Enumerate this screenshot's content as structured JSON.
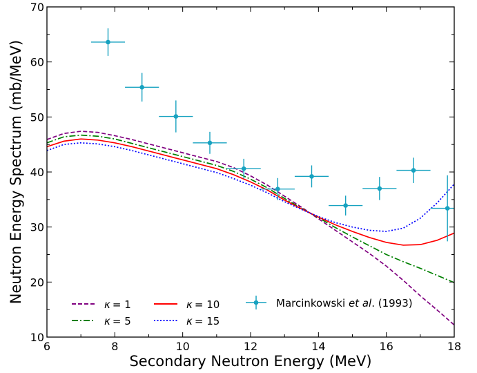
{
  "chart_data": {
    "type": "line",
    "xlabel": "Secondary Neutron Energy (MeV)",
    "ylabel": "Neutron Energy Spectrum (mb/MeV)",
    "xlim": [
      6,
      18
    ],
    "ylim": [
      10,
      70
    ],
    "xticks": [
      "6",
      "8",
      "10",
      "12",
      "14",
      "16",
      "18"
    ],
    "yticks": [
      "10",
      "20",
      "30",
      "40",
      "50",
      "60",
      "70"
    ],
    "grid": false,
    "legend_position": "bottom",
    "legend_label_parts": {
      "kappa_symbol": "κ",
      "kappa_eq": "= ",
      "marcinkowski_name": "Marcinkowski ",
      "marcinkowski_etal": "et al",
      "marcinkowski_year": ". (1993)"
    },
    "series": [
      {
        "name": "κ = 1",
        "kappa": "1",
        "color": "#800080",
        "style": "dashed",
        "x": [
          6,
          6.5,
          7,
          7.5,
          8,
          8.5,
          9,
          9.5,
          10,
          10.5,
          11,
          11.5,
          12,
          12.5,
          13,
          13.5,
          14,
          14.5,
          15,
          15.5,
          16,
          16.5,
          17,
          17.5,
          18
        ],
        "y": [
          45.9,
          47.0,
          47.4,
          47.2,
          46.6,
          45.9,
          45.1,
          44.3,
          43.5,
          42.7,
          41.9,
          40.8,
          39.3,
          37.6,
          35.6,
          33.6,
          31.5,
          29.4,
          27.3,
          25.2,
          22.9,
          20.3,
          17.5,
          14.9,
          12.2
        ]
      },
      {
        "name": "κ = 5",
        "kappa": "5",
        "color": "#008000",
        "style": "dashdot",
        "x": [
          6,
          6.5,
          7,
          7.5,
          8,
          8.5,
          9,
          9.5,
          10,
          10.5,
          11,
          11.5,
          12,
          12.5,
          13,
          13.5,
          14,
          14.5,
          15,
          15.5,
          16,
          16.5,
          17,
          17.5,
          18
        ],
        "y": [
          45.3,
          46.4,
          46.7,
          46.5,
          46.0,
          45.2,
          44.4,
          43.6,
          42.8,
          42.0,
          41.2,
          40.1,
          38.7,
          37.1,
          35.2,
          33.4,
          31.7,
          29.9,
          28.2,
          26.6,
          25.0,
          23.7,
          22.5,
          21.2,
          19.9
        ]
      },
      {
        "name": "κ = 10",
        "kappa": "10",
        "color": "#ff0000",
        "style": "solid",
        "x": [
          6,
          6.5,
          7,
          7.5,
          8,
          8.5,
          9,
          9.5,
          10,
          10.5,
          11,
          11.5,
          12,
          12.5,
          13,
          13.5,
          14,
          14.5,
          15,
          15.5,
          16,
          16.5,
          17,
          17.5,
          18
        ],
        "y": [
          44.6,
          45.6,
          46.0,
          45.8,
          45.3,
          44.6,
          43.8,
          43.0,
          42.2,
          41.4,
          40.6,
          39.5,
          38.2,
          36.7,
          34.9,
          33.3,
          31.8,
          30.4,
          29.2,
          28.1,
          27.2,
          26.7,
          26.8,
          27.6,
          28.9
        ]
      },
      {
        "name": "κ = 15",
        "kappa": "15",
        "color": "#0000ff",
        "style": "dotted",
        "x": [
          6,
          6.5,
          7,
          7.5,
          8,
          8.5,
          9,
          9.5,
          10,
          10.5,
          11,
          11.5,
          12,
          12.5,
          13,
          13.5,
          14,
          14.5,
          15,
          15.5,
          16,
          16.5,
          17,
          17.5,
          18
        ],
        "y": [
          43.9,
          45.0,
          45.3,
          45.1,
          44.6,
          43.9,
          43.1,
          42.3,
          41.5,
          40.7,
          39.9,
          38.8,
          37.6,
          36.2,
          34.6,
          33.2,
          31.9,
          30.8,
          30.0,
          29.4,
          29.2,
          29.8,
          31.6,
          34.4,
          37.8
        ]
      }
    ],
    "experimental": {
      "name": "Marcinkowski et al. (1993)",
      "color": "#17a2c0",
      "points": [
        {
          "x": 7.8,
          "y": 63.6,
          "xerr": 0.5,
          "yerr": 2.5
        },
        {
          "x": 8.8,
          "y": 55.4,
          "xerr": 0.5,
          "yerr": 2.6
        },
        {
          "x": 9.8,
          "y": 50.1,
          "xerr": 0.5,
          "yerr": 2.9
        },
        {
          "x": 10.8,
          "y": 45.3,
          "xerr": 0.5,
          "yerr": 2.0
        },
        {
          "x": 11.8,
          "y": 40.6,
          "xerr": 0.5,
          "yerr": 1.8
        },
        {
          "x": 12.8,
          "y": 36.9,
          "xerr": 0.5,
          "yerr": 2.0
        },
        {
          "x": 13.8,
          "y": 39.2,
          "xerr": 0.5,
          "yerr": 2.0
        },
        {
          "x": 14.8,
          "y": 33.9,
          "xerr": 0.5,
          "yerr": 1.8
        },
        {
          "x": 15.8,
          "y": 37.0,
          "xerr": 0.5,
          "yerr": 2.1
        },
        {
          "x": 16.8,
          "y": 40.3,
          "xerr": 0.5,
          "yerr": 2.3
        },
        {
          "x": 17.8,
          "y": 33.4,
          "xerr": 0.5,
          "yerr": 6.0
        }
      ]
    }
  }
}
